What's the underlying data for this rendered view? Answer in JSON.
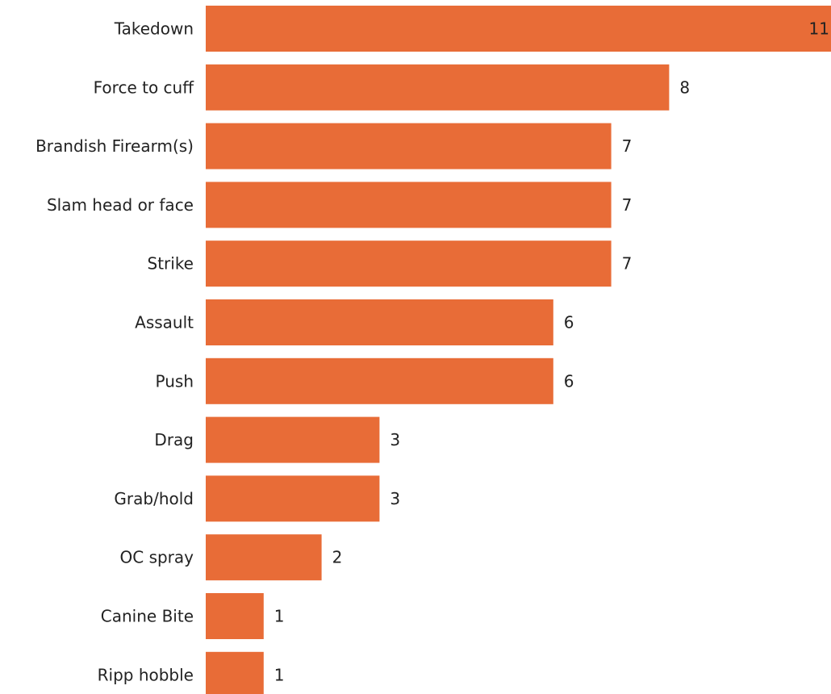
{
  "chart_data": {
    "type": "bar",
    "orientation": "horizontal",
    "categories": [
      "Takedown",
      "Force to cuff",
      "Brandish Firearm(s)",
      "Slam head or face",
      "Strike",
      "Assault",
      "Push",
      "Drag",
      "Grab/hold",
      "OC spray",
      "Canine Bite",
      "Ripp hobble"
    ],
    "values": [
      11,
      8,
      7,
      7,
      7,
      6,
      6,
      3,
      3,
      2,
      1,
      1
    ],
    "value_labels": [
      "11",
      "8",
      "7",
      "7",
      "7",
      "6",
      "6",
      "3",
      "3",
      "2",
      "1",
      "1"
    ],
    "bar_color": "#E86C37",
    "text_color": "#222222",
    "title": "",
    "xlabel": "",
    "ylabel": "",
    "xlim": [
      0,
      11
    ],
    "grid": false,
    "legend": "none",
    "data_labels": "outside-end"
  }
}
